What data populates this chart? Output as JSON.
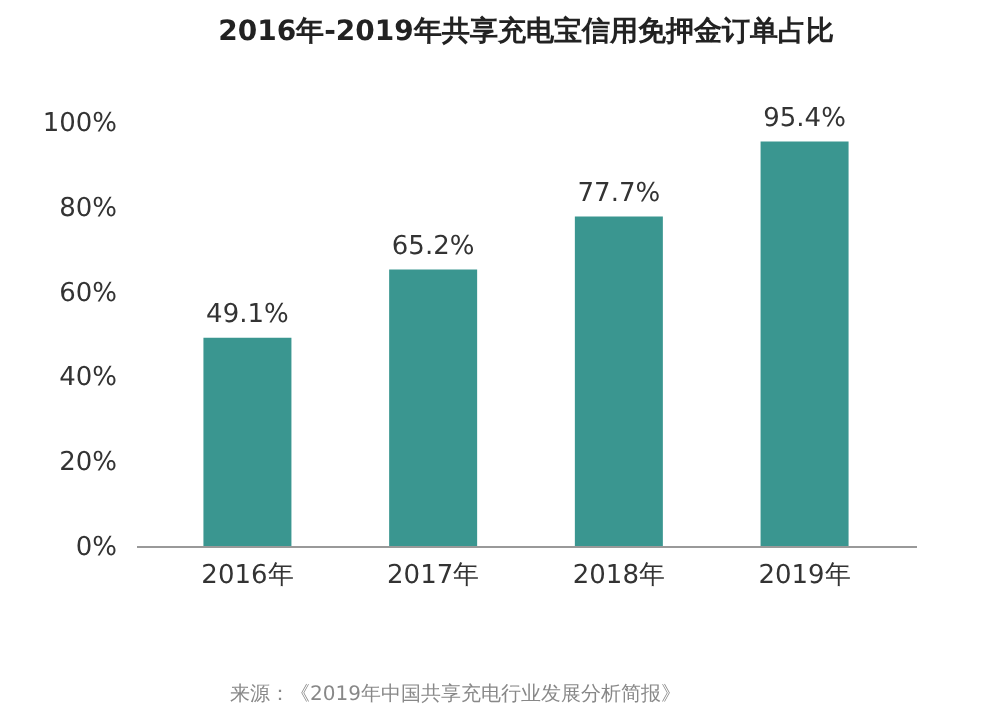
{
  "chart_data": {
    "type": "bar",
    "title": "2016年-2019年共享充电宝信用免押金订单占比",
    "categories": [
      "2016年",
      "2017年",
      "2018年",
      "2019年"
    ],
    "values": [
      49.1,
      65.2,
      77.7,
      95.4
    ],
    "value_labels": [
      "49.1%",
      "65.2%",
      "77.7%",
      "95.4%"
    ],
    "color": "#3a9690",
    "ylim": [
      0,
      100
    ],
    "yticks": [
      {
        "value": 0,
        "label": "0%"
      },
      {
        "value": 20,
        "label": "20%"
      },
      {
        "value": 40,
        "label": "40%"
      },
      {
        "value": 60,
        "label": "60%"
      },
      {
        "value": 80,
        "label": "80%"
      },
      {
        "value": 100,
        "label": "100%"
      }
    ],
    "grid": false,
    "annotations": [
      "来源：《2019年中国共享充电行业发展分析简报》"
    ]
  }
}
